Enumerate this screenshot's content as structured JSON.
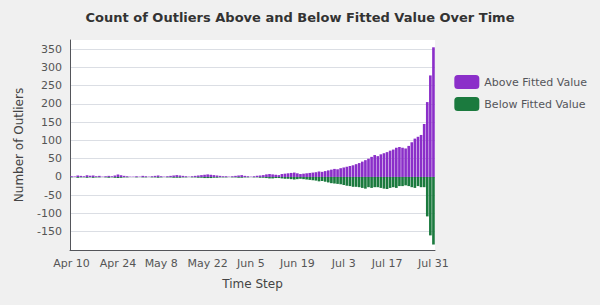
{
  "chart_data": {
    "type": "bar",
    "title": "Count of Outliers Above and Below Fitted Value Over Time",
    "xlabel": "Time Step",
    "ylabel": "Number of Outliers",
    "categories": [
      "Apr 10",
      null,
      null,
      null,
      null,
      null,
      null,
      null,
      null,
      null,
      null,
      null,
      null,
      null,
      null,
      "Apr 24",
      null,
      null,
      null,
      null,
      null,
      null,
      null,
      null,
      null,
      null,
      null,
      null,
      null,
      "May 8",
      null,
      null,
      null,
      null,
      null,
      null,
      null,
      null,
      null,
      null,
      null,
      null,
      null,
      null,
      "May 22",
      null,
      null,
      null,
      null,
      null,
      null,
      null,
      null,
      null,
      null,
      null,
      null,
      null,
      "Jun 5",
      null,
      null,
      null,
      null,
      null,
      null,
      null,
      null,
      null,
      null,
      null,
      null,
      null,
      null,
      "Jun 19",
      null,
      null,
      null,
      null,
      null,
      null,
      null,
      null,
      null,
      null,
      null,
      null,
      null,
      null,
      "Jul 3",
      null,
      null,
      null,
      null,
      null,
      null,
      null,
      null,
      null,
      null,
      null,
      null,
      null,
      "Jul 17",
      null,
      null,
      null,
      null,
      null,
      null,
      null,
      null,
      null,
      null,
      null,
      null,
      null,
      null,
      "Jul 31"
    ],
    "series": [
      {
        "name": "Above Fitted Value",
        "color": "#8B2FC9",
        "values": [
          2,
          1,
          4,
          3,
          2,
          5,
          3,
          4,
          2,
          3,
          1,
          2,
          3,
          2,
          4,
          7,
          5,
          3,
          2,
          1,
          1,
          2,
          1,
          3,
          2,
          1,
          2,
          3,
          4,
          2,
          1,
          2,
          3,
          4,
          5,
          4,
          3,
          2,
          1,
          2,
          3,
          4,
          5,
          6,
          7,
          6,
          5,
          4,
          3,
          2,
          2,
          1,
          2,
          3,
          4,
          5,
          3,
          2,
          1,
          2,
          3,
          4,
          5,
          7,
          8,
          7,
          6,
          5,
          8,
          9,
          10,
          11,
          12,
          10,
          8,
          9,
          10,
          11,
          12,
          13,
          15,
          14,
          16,
          18,
          20,
          22,
          21,
          24,
          26,
          28,
          30,
          32,
          35,
          38,
          42,
          46,
          50,
          55,
          60,
          57,
          62,
          65,
          68,
          72,
          75,
          80,
          82,
          80,
          78,
          85,
          95,
          105,
          110,
          115,
          145,
          205,
          278,
          355
        ]
      },
      {
        "name": "Below Fitted Value",
        "color": "#1B7A3E",
        "values": [
          -1,
          0,
          -2,
          -1,
          -1,
          -2,
          -1,
          -2,
          -1,
          -1,
          0,
          -1,
          -2,
          -1,
          -2,
          -3,
          -2,
          -1,
          -1,
          0,
          0,
          -1,
          0,
          -1,
          -1,
          0,
          -1,
          -1,
          -2,
          -1,
          0,
          -1,
          -1,
          -2,
          -2,
          -2,
          -1,
          -1,
          0,
          -1,
          -1,
          -2,
          -2,
          -3,
          -3,
          -3,
          -2,
          -2,
          -1,
          -1,
          -1,
          0,
          -1,
          -1,
          -2,
          -2,
          -1,
          -1,
          0,
          -1,
          -1,
          -2,
          -2,
          -3,
          -4,
          -4,
          -3,
          -3,
          -4,
          -5,
          -5,
          -6,
          -7,
          -6,
          -5,
          -6,
          -7,
          -8,
          -9,
          -10,
          -12,
          -11,
          -13,
          -15,
          -17,
          -18,
          -19,
          -20,
          -22,
          -24,
          -25,
          -27,
          -27,
          -28,
          -30,
          -32,
          -28,
          -30,
          -28,
          -28,
          -30,
          -32,
          -33,
          -30,
          -28,
          -30,
          -25,
          -25,
          -23,
          -25,
          -28,
          -30,
          -25,
          -28,
          -28,
          -108,
          -160,
          -185
        ]
      }
    ],
    "ylim": [
      -200,
      375
    ],
    "yticks": [
      -150,
      -100,
      -50,
      0,
      50,
      100,
      150,
      200,
      250,
      300,
      350
    ],
    "grid": true,
    "legend": "right"
  }
}
